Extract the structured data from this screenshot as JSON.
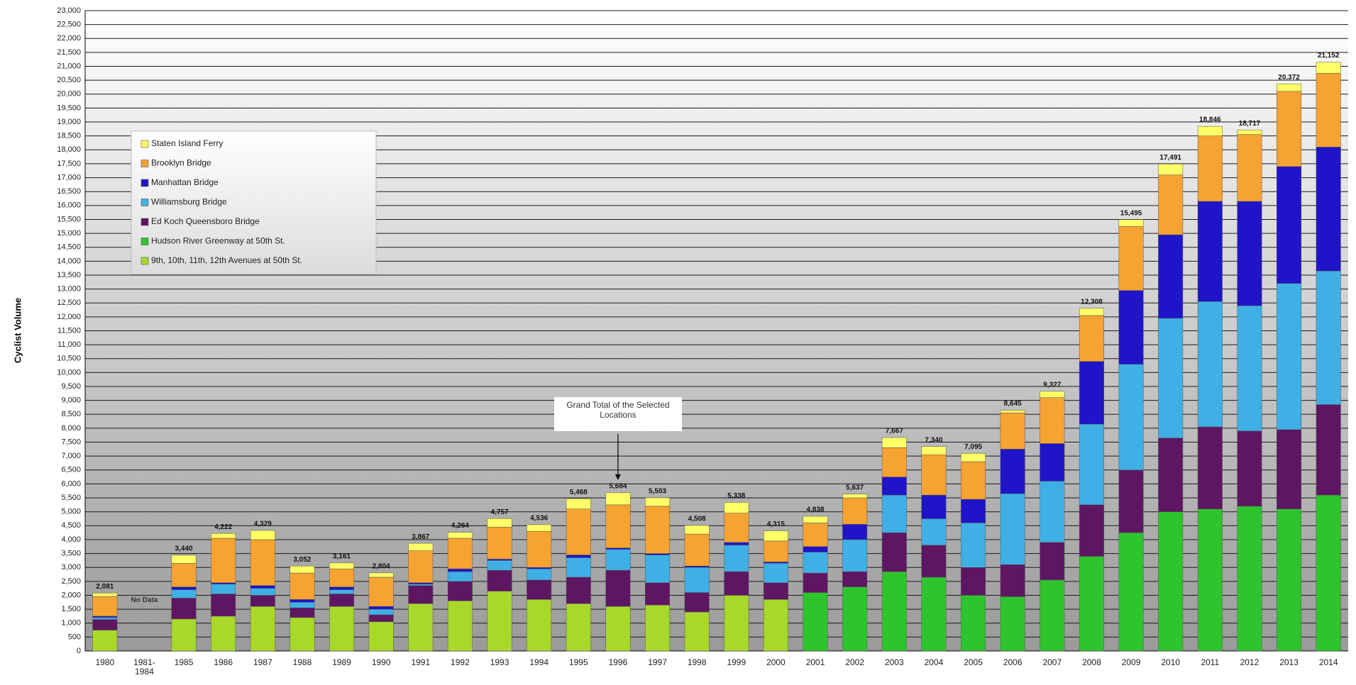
{
  "chart_data": {
    "type": "stacked-bar",
    "y_label": "Cyclist Volume",
    "categories": [
      "1980",
      "1981-\n1984",
      "1985",
      "1986",
      "1987",
      "1988",
      "1989",
      "1990",
      "1991",
      "1992",
      "1993",
      "1994",
      "1995",
      "1996",
      "1997",
      "1998",
      "1999",
      "2000",
      "2001",
      "2002",
      "2003",
      "2004",
      "2005",
      "2006",
      "2007",
      "2008",
      "2009",
      "2010",
      "2011",
      "2012",
      "2013",
      "2014"
    ],
    "series": [
      {
        "name": "Staten Island Ferry",
        "color": "#ffff66",
        "values": [
          131,
          null,
          290,
          172,
          329,
          252,
          211,
          154,
          267,
          214,
          307,
          236,
          368,
          434,
          303,
          308,
          388,
          365,
          238,
          137,
          367,
          290,
          295,
          95,
          227,
          258,
          245,
          391,
          346,
          167,
          272,
          402
        ]
      },
      {
        "name": "Brooklyn Bridge",
        "color": "#f7a331",
        "values": [
          700,
          null,
          850,
          1600,
          1650,
          950,
          650,
          1050,
          1150,
          1100,
          1150,
          1300,
          1650,
          1550,
          1700,
          1150,
          1050,
          750,
          850,
          950,
          1050,
          1450,
          1350,
          1300,
          1650,
          1650,
          2300,
          2150,
          2350,
          2400,
          2700,
          2650
        ]
      },
      {
        "name": "Manhattan Bridge",
        "color": "#1f14c8",
        "values": [
          50,
          null,
          100,
          50,
          100,
          100,
          100,
          100,
          50,
          100,
          50,
          50,
          100,
          50,
          50,
          50,
          100,
          50,
          200,
          550,
          650,
          850,
          850,
          1600,
          1350,
          2250,
          2650,
          3000,
          3600,
          3750,
          4200,
          4450
        ]
      },
      {
        "name": "Williamsburg Bridge",
        "color": "#3fb0e6",
        "values": [
          70,
          null,
          300,
          350,
          250,
          200,
          150,
          200,
          50,
          350,
          350,
          400,
          700,
          750,
          1000,
          900,
          950,
          700,
          750,
          1150,
          1350,
          950,
          1600,
          2550,
          2200,
          2900,
          3800,
          4300,
          4500,
          4500,
          5250,
          4800
        ]
      },
      {
        "name": "Ed Koch Queensboro Bridge",
        "color": "#5e1663",
        "values": [
          380,
          null,
          750,
          800,
          400,
          350,
          450,
          250,
          650,
          700,
          750,
          700,
          950,
          1300,
          800,
          700,
          850,
          600,
          700,
          550,
          1400,
          1150,
          1000,
          1150,
          1350,
          1850,
          2250,
          2650,
          2950,
          2700,
          2850,
          3250
        ]
      },
      {
        "name": "Hudson River Greenway at 50th St.",
        "color": "#2ec42e",
        "values": [
          null,
          null,
          null,
          null,
          null,
          null,
          null,
          null,
          null,
          null,
          null,
          null,
          null,
          null,
          null,
          null,
          null,
          null,
          2100,
          2300,
          2850,
          2650,
          2000,
          1950,
          2550,
          3400,
          4250,
          5000,
          5100,
          5200,
          5100,
          5600
        ]
      },
      {
        "name": "9th, 10th, 11th, 12th Avenues at 50th St.",
        "color": "#a8d82a",
        "values": [
          750,
          null,
          1150,
          1250,
          1600,
          1200,
          1600,
          1050,
          1700,
          1800,
          2150,
          1850,
          1700,
          1600,
          1650,
          1400,
          2000,
          1850,
          null,
          null,
          null,
          null,
          null,
          null,
          null,
          null,
          null,
          null,
          null,
          null,
          null,
          null
        ]
      }
    ],
    "totals": {
      "values": [
        2081,
        null,
        3440,
        4222,
        4329,
        3052,
        3161,
        2804,
        3867,
        4264,
        4757,
        4536,
        5468,
        5684,
        5503,
        4508,
        5338,
        4315,
        4838,
        5637,
        7667,
        7340,
        7095,
        8645,
        9327,
        12308,
        15495,
        17491,
        18846,
        18717,
        20372,
        21152
      ],
      "value_labels": [
        "2,081",
        null,
        "3,440",
        "4,222",
        "4,329",
        "3,052",
        "3,161",
        "2,804",
        "3,867",
        "4,264",
        "4,757",
        "4,536",
        "5,468",
        "5,684",
        "5,503",
        "4,508",
        "5,338",
        "4,315",
        "4,838",
        "5,637",
        "7,667",
        "7,340",
        "7,095",
        "8,645",
        "9,327",
        "12,308",
        "15,495",
        "17,491",
        "18,846",
        "18,717",
        "20,372",
        "21,152"
      ]
    },
    "annotations": [
      "No Data",
      "Grand Total of the Selected Locations"
    ],
    "ylim": [
      0,
      23000
    ],
    "yticks": [
      0,
      500,
      {
        "value": 1000,
        "label": "1,000"
      },
      {
        "value": 1500,
        "label": "1,500"
      },
      {
        "value": 2000,
        "label": "2,000"
      },
      {
        "value": 2500,
        "label": "2,500"
      },
      {
        "value": 3000,
        "label": "3,000"
      },
      {
        "value": 3500,
        "label": "3,500"
      },
      {
        "value": 4000,
        "label": "4,000"
      },
      {
        "value": 4500,
        "label": "4,500"
      },
      {
        "value": 5000,
        "label": "5,000"
      },
      {
        "value": 5500,
        "label": "5,500"
      },
      {
        "value": 6000,
        "label": "6,000"
      },
      {
        "value": 6500,
        "label": "6,500"
      },
      {
        "value": 7000,
        "label": "7,000"
      },
      {
        "value": 7500,
        "label": "7,500"
      },
      {
        "value": 8000,
        "label": "8,000"
      },
      {
        "value": 8500,
        "label": "8,500"
      },
      {
        "value": 9000,
        "label": "9,000"
      },
      {
        "value": 9500,
        "label": "9,500"
      },
      {
        "value": 10000,
        "label": "10,000"
      },
      {
        "value": 10500,
        "label": "10,500"
      },
      {
        "value": 11000,
        "label": "11,000"
      },
      {
        "value": 11500,
        "label": "11,500"
      },
      {
        "value": 12000,
        "label": "12,000"
      },
      {
        "value": 12500,
        "label": "12,500"
      },
      {
        "value": 13000,
        "label": "13,000"
      },
      {
        "value": 13500,
        "label": "13,500"
      },
      {
        "value": 14000,
        "label": "14,000"
      },
      {
        "value": 14500,
        "label": "14,500"
      },
      {
        "value": 15000,
        "label": "15,000"
      },
      {
        "value": 15500,
        "label": "15,500"
      },
      {
        "value": 16000,
        "label": "16,000"
      },
      {
        "value": 16500,
        "label": "16,500"
      },
      {
        "value": 17000,
        "label": "17,000"
      },
      {
        "value": 17500,
        "label": "17,500"
      },
      {
        "value": 18000,
        "label": "18,000"
      },
      {
        "value": 18500,
        "label": "18,500"
      },
      {
        "value": 19000,
        "label": "19,000"
      },
      {
        "value": 19500,
        "label": "19,500"
      },
      {
        "value": 20000,
        "label": "20,000"
      },
      {
        "value": 20500,
        "label": "20,500"
      },
      {
        "value": 21000,
        "label": "21,000"
      },
      {
        "value": 21500,
        "label": "21,500"
      },
      {
        "value": 22000,
        "label": "22,000"
      },
      {
        "value": 22500,
        "label": "22,500"
      },
      {
        "value": 23000,
        "label": "23,000"
      }
    ],
    "grid": true
  }
}
